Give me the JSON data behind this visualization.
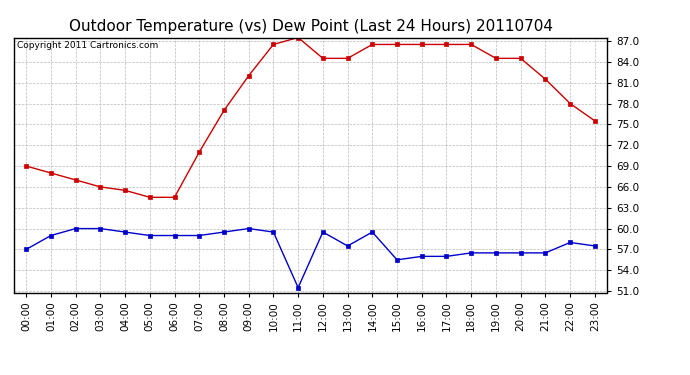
{
  "title": "Outdoor Temperature (vs) Dew Point (Last 24 Hours) 20110704",
  "copyright": "Copyright 2011 Cartronics.com",
  "hours": [
    "00:00",
    "01:00",
    "02:00",
    "03:00",
    "04:00",
    "05:00",
    "06:00",
    "07:00",
    "08:00",
    "09:00",
    "10:00",
    "11:00",
    "12:00",
    "13:00",
    "14:00",
    "15:00",
    "16:00",
    "17:00",
    "18:00",
    "19:00",
    "20:00",
    "21:00",
    "22:00",
    "23:00"
  ],
  "temp": [
    69.0,
    68.0,
    67.0,
    66.0,
    65.5,
    64.5,
    64.5,
    71.0,
    77.0,
    82.0,
    86.5,
    87.5,
    84.5,
    84.5,
    86.5,
    86.5,
    86.5,
    86.5,
    86.5,
    84.5,
    84.5,
    81.5,
    78.0,
    75.5
  ],
  "dew": [
    57.0,
    59.0,
    60.0,
    60.0,
    59.5,
    59.0,
    59.0,
    59.0,
    59.5,
    60.0,
    59.5,
    51.5,
    59.5,
    57.5,
    59.5,
    55.5,
    56.0,
    56.0,
    56.5,
    56.5,
    56.5,
    56.5,
    58.0,
    57.5
  ],
  "temp_color": "#cc0000",
  "dew_color": "#0000cc",
  "bg_color": "#ffffff",
  "grid_color": "#bbbbbb",
  "ylim_min": 51.0,
  "ylim_max": 87.0,
  "ytick_step": 3.0,
  "title_fontsize": 11,
  "axis_fontsize": 7.5,
  "copyright_fontsize": 6.5
}
